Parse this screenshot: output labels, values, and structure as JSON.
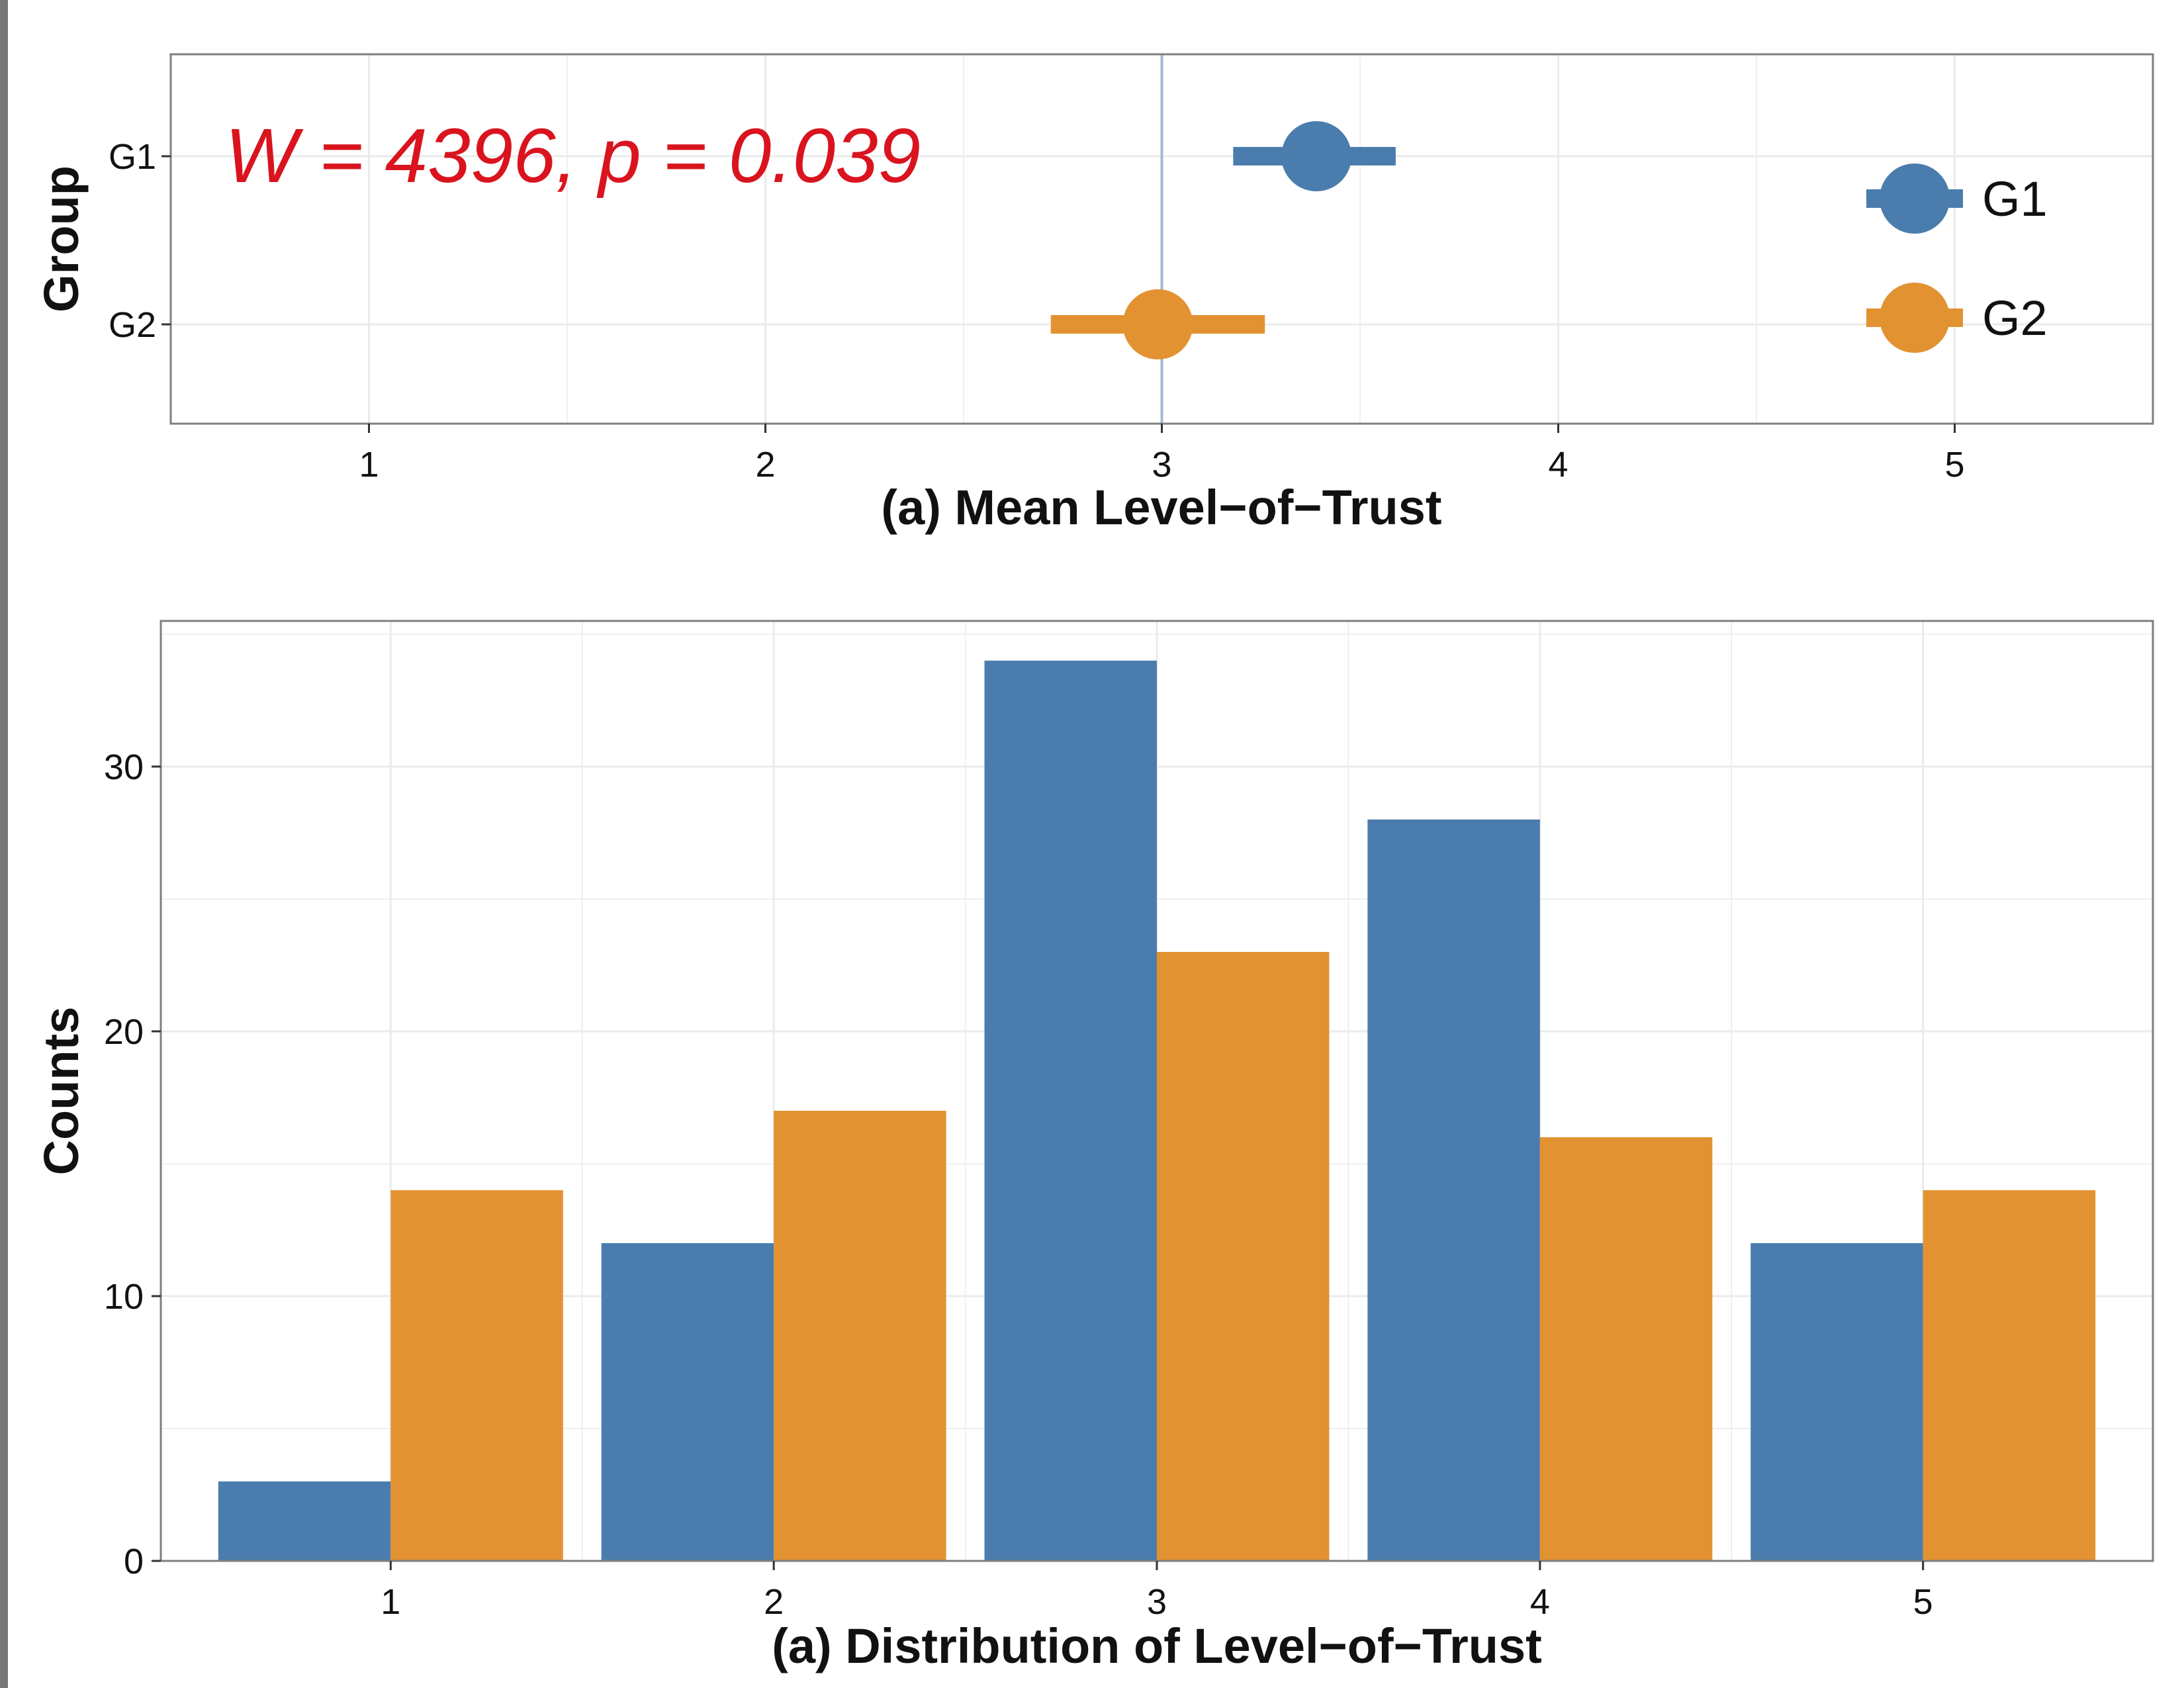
{
  "colors": {
    "G1": "#4A7DAD",
    "G2": "#E39232",
    "annotation": "#D9141E",
    "reference_line": "#9FBAD3",
    "grid": "#EBEBEB",
    "panel_border": "#7F7F7F"
  },
  "chart_data": [
    {
      "type": "scatter",
      "subtype": "mean with error bars",
      "xlabel": "(a) Mean Level−of−Trust",
      "ylabel": "Group",
      "xlim": [
        0.5,
        5.5
      ],
      "xticks": [
        "1",
        "2",
        "3",
        "4",
        "5"
      ],
      "categories": [
        "G1",
        "G2"
      ],
      "reference_line_x": 3,
      "grid": true,
      "annotation": "W = 4396, p = 0.039",
      "legend": {
        "position": "right",
        "entries": [
          "G1",
          "G2"
        ]
      },
      "series": [
        {
          "name": "G1",
          "mean": 3.39,
          "lower": 3.18,
          "upper": 3.59
        },
        {
          "name": "G2",
          "mean": 2.99,
          "lower": 2.72,
          "upper": 3.26
        }
      ]
    },
    {
      "type": "bar",
      "subtype": "grouped",
      "xlabel": "(a) Distribution of Level−of−Trust",
      "ylabel": "Counts",
      "categories": [
        "1",
        "2",
        "3",
        "4",
        "5"
      ],
      "ylim": [
        0,
        35.5
      ],
      "yticks": [
        "0",
        "10",
        "20",
        "30"
      ],
      "grid": true,
      "series": [
        {
          "name": "G1",
          "values": [
            3,
            12,
            34,
            28,
            12
          ]
        },
        {
          "name": "G2",
          "values": [
            14,
            17,
            23,
            16,
            14
          ]
        }
      ]
    }
  ]
}
